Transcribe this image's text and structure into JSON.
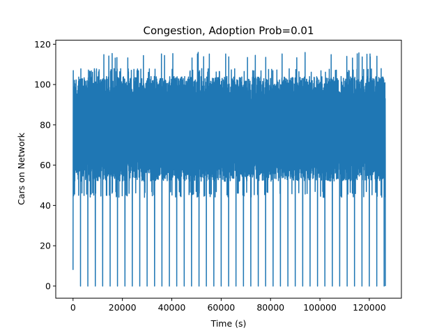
{
  "chart_data": {
    "type": "line",
    "title": "Congestion, Adoption Prob=0.01",
    "xlabel": "Time (s)",
    "ylabel": "Cars on Network",
    "xlim": [
      -7000,
      133000
    ],
    "ylim": [
      -6,
      122
    ],
    "xticks": [
      0,
      20000,
      40000,
      60000,
      80000,
      100000,
      120000
    ],
    "yticks": [
      0,
      20,
      40,
      60,
      80,
      100,
      120
    ],
    "grid": false,
    "legend": "none",
    "series": [
      {
        "color": "#1f77b4",
        "description_summary": {
          "x_start": 0,
          "x_end": 126500,
          "start_value": 8,
          "typical_min": 47,
          "typical_max": 108,
          "peak_max": 116,
          "dense_band_low": 52,
          "dense_band_high": 104,
          "dip_to_zero_period_s": 3000,
          "dip_to_zero_start_s": 3000,
          "end_value": 0
        }
      }
    ]
  }
}
